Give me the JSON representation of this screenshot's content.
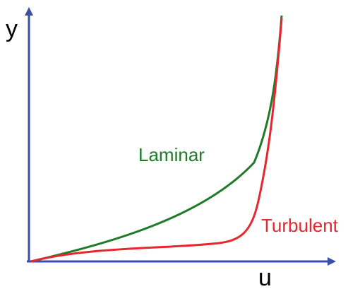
{
  "axes": {
    "x_label": "u",
    "y_label": "y",
    "axis_color": "#3b4fa8"
  },
  "curves": [
    {
      "name": "Laminar",
      "color": "#1f7a2a"
    },
    {
      "name": "Turbulent",
      "color": "#e8262e"
    }
  ]
}
